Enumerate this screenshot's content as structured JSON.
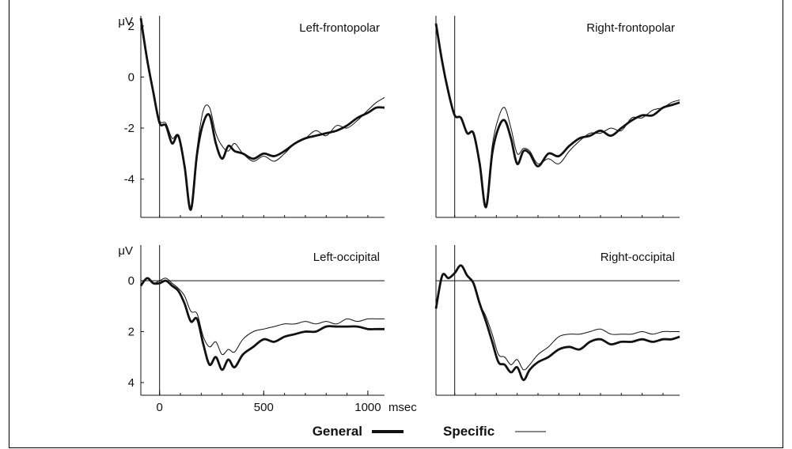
{
  "chart_data": [
    {
      "type": "line",
      "title": "Left-frontopolar",
      "ylabel": "μV",
      "ylim": [
        2.4,
        -5.5
      ],
      "y_inverted": true,
      "xlim": [
        -90,
        1080
      ],
      "yticks": [
        "-4",
        "-2",
        "0",
        "2"
      ],
      "xticks": [],
      "xlabel": "",
      "series": [
        {
          "name": "General",
          "x": [
            -90,
            -60,
            -30,
            0,
            30,
            60,
            90,
            120,
            150,
            180,
            210,
            240,
            270,
            300,
            330,
            360,
            400,
            450,
            500,
            550,
            600,
            650,
            700,
            750,
            800,
            850,
            900,
            950,
            1000,
            1040,
            1080
          ],
          "values": [
            2.3,
            0.7,
            -0.6,
            -1.8,
            -1.9,
            -2.6,
            -2.3,
            -3.5,
            -5.2,
            -3.0,
            -1.8,
            -1.5,
            -2.6,
            -3.2,
            -2.7,
            -2.9,
            -3.0,
            -3.2,
            -3.0,
            -3.1,
            -2.9,
            -2.6,
            -2.4,
            -2.3,
            -2.2,
            -2.1,
            -1.9,
            -1.6,
            -1.4,
            -1.2,
            -1.2
          ]
        },
        {
          "name": "Specific",
          "x": [
            -90,
            -60,
            -30,
            0,
            30,
            60,
            90,
            120,
            150,
            180,
            210,
            240,
            270,
            300,
            330,
            360,
            400,
            450,
            500,
            550,
            600,
            650,
            700,
            750,
            800,
            850,
            900,
            950,
            1000,
            1040,
            1080
          ],
          "values": [
            2.1,
            0.6,
            -0.6,
            -1.7,
            -1.8,
            -2.4,
            -2.3,
            -3.6,
            -5.1,
            -2.8,
            -1.3,
            -1.2,
            -2.2,
            -2.7,
            -2.9,
            -2.6,
            -3.0,
            -3.3,
            -3.1,
            -3.3,
            -3.0,
            -2.6,
            -2.4,
            -2.1,
            -2.3,
            -1.9,
            -2.0,
            -1.7,
            -1.3,
            -1.0,
            -0.8
          ]
        }
      ]
    },
    {
      "type": "line",
      "title": "Right-frontopolar",
      "ylabel": "",
      "ylim": [
        2.4,
        -5.5
      ],
      "y_inverted": true,
      "xlim": [
        -90,
        1080
      ],
      "yticks": [],
      "xticks": [],
      "xlabel": "",
      "series": [
        {
          "name": "General",
          "x": [
            -90,
            -60,
            -30,
            0,
            30,
            60,
            90,
            120,
            150,
            180,
            210,
            240,
            270,
            300,
            330,
            360,
            400,
            450,
            500,
            550,
            600,
            650,
            700,
            750,
            800,
            850,
            900,
            950,
            1000,
            1040,
            1080
          ],
          "values": [
            2.1,
            0.6,
            -0.6,
            -1.5,
            -1.6,
            -2.2,
            -2.2,
            -3.4,
            -5.1,
            -3.0,
            -2.0,
            -1.7,
            -2.4,
            -3.4,
            -2.9,
            -3.0,
            -3.5,
            -3.0,
            -3.1,
            -2.7,
            -2.4,
            -2.3,
            -2.1,
            -2.3,
            -2.0,
            -1.7,
            -1.5,
            -1.5,
            -1.2,
            -1.1,
            -1.0
          ]
        },
        {
          "name": "Specific",
          "x": [
            -90,
            -60,
            -30,
            0,
            30,
            60,
            90,
            120,
            150,
            180,
            210,
            240,
            270,
            300,
            330,
            360,
            400,
            450,
            500,
            550,
            600,
            650,
            700,
            750,
            800,
            850,
            900,
            950,
            1000,
            1040,
            1080
          ],
          "values": [
            2.0,
            0.6,
            -0.6,
            -1.5,
            -1.6,
            -2.2,
            -2.2,
            -3.4,
            -5.0,
            -2.7,
            -1.6,
            -1.2,
            -2.0,
            -3.0,
            -2.8,
            -2.9,
            -3.4,
            -3.2,
            -3.4,
            -2.9,
            -2.5,
            -2.2,
            -2.2,
            -2.0,
            -2.1,
            -1.6,
            -1.6,
            -1.3,
            -1.2,
            -1.0,
            -0.9
          ]
        }
      ]
    },
    {
      "type": "line",
      "title": "Left-occipital",
      "ylabel": "μV",
      "ylim": [
        -1.4,
        4.5
      ],
      "y_inverted": true,
      "xlim": [
        -90,
        1080
      ],
      "yticks": [
        "0",
        "2",
        "4"
      ],
      "xticks": [
        "0",
        "500",
        "1000"
      ],
      "xlabel": "msec",
      "series": [
        {
          "name": "General",
          "x": [
            -90,
            -60,
            -30,
            0,
            30,
            60,
            90,
            120,
            150,
            180,
            210,
            240,
            270,
            300,
            330,
            360,
            400,
            450,
            500,
            550,
            600,
            650,
            700,
            750,
            800,
            850,
            900,
            950,
            1000,
            1040,
            1080
          ],
          "values": [
            0.2,
            -0.1,
            0.1,
            0.1,
            0.0,
            0.2,
            0.4,
            0.9,
            1.6,
            1.5,
            2.5,
            3.3,
            3.0,
            3.5,
            3.1,
            3.4,
            2.9,
            2.6,
            2.3,
            2.4,
            2.2,
            2.1,
            2.0,
            2.0,
            1.8,
            1.8,
            1.8,
            1.8,
            1.9,
            1.9,
            1.9
          ]
        },
        {
          "name": "Specific",
          "x": [
            -90,
            -60,
            -30,
            0,
            30,
            60,
            90,
            120,
            150,
            180,
            210,
            240,
            270,
            300,
            330,
            360,
            400,
            450,
            500,
            550,
            600,
            650,
            700,
            750,
            800,
            850,
            900,
            950,
            1000,
            1040,
            1080
          ],
          "values": [
            0.2,
            -0.1,
            0.1,
            0.0,
            -0.1,
            0.1,
            0.3,
            0.6,
            1.2,
            1.3,
            2.2,
            2.6,
            2.4,
            2.9,
            2.7,
            2.8,
            2.3,
            2.0,
            1.9,
            1.8,
            1.7,
            1.7,
            1.6,
            1.7,
            1.6,
            1.7,
            1.5,
            1.6,
            1.5,
            1.5,
            1.5
          ]
        }
      ]
    },
    {
      "type": "line",
      "title": "Right-occipital",
      "ylabel": "",
      "ylim": [
        -1.4,
        4.5
      ],
      "y_inverted": true,
      "xlim": [
        -90,
        1080
      ],
      "yticks": [],
      "xticks": [],
      "xlabel": "",
      "series": [
        {
          "name": "General",
          "x": [
            -90,
            -60,
            -30,
            0,
            30,
            60,
            90,
            120,
            150,
            180,
            210,
            240,
            270,
            300,
            330,
            360,
            400,
            450,
            500,
            550,
            600,
            650,
            700,
            750,
            800,
            850,
            900,
            950,
            1000,
            1040,
            1080
          ],
          "values": [
            1.1,
            -0.2,
            -0.1,
            -0.3,
            -0.6,
            -0.2,
            0.1,
            0.9,
            1.6,
            2.4,
            3.2,
            3.3,
            3.6,
            3.4,
            3.9,
            3.5,
            3.2,
            3.0,
            2.7,
            2.6,
            2.7,
            2.4,
            2.3,
            2.5,
            2.4,
            2.4,
            2.3,
            2.4,
            2.3,
            2.3,
            2.2
          ]
        },
        {
          "name": "Specific",
          "x": [
            -90,
            -60,
            -30,
            0,
            30,
            60,
            90,
            120,
            150,
            180,
            210,
            240,
            270,
            300,
            330,
            360,
            400,
            450,
            500,
            550,
            600,
            650,
            700,
            750,
            800,
            850,
            900,
            950,
            1000,
            1040,
            1080
          ],
          "values": [
            1.0,
            -0.2,
            -0.1,
            -0.3,
            -0.6,
            -0.2,
            0.1,
            0.9,
            1.4,
            2.1,
            2.9,
            3.0,
            3.3,
            3.1,
            3.5,
            3.3,
            2.9,
            2.6,
            2.2,
            2.1,
            2.1,
            2.0,
            1.9,
            2.1,
            2.1,
            2.1,
            2.0,
            2.1,
            2.0,
            2.0,
            2.0
          ]
        }
      ]
    }
  ],
  "legend": {
    "general_label": "General",
    "specific_label": "Specific"
  }
}
